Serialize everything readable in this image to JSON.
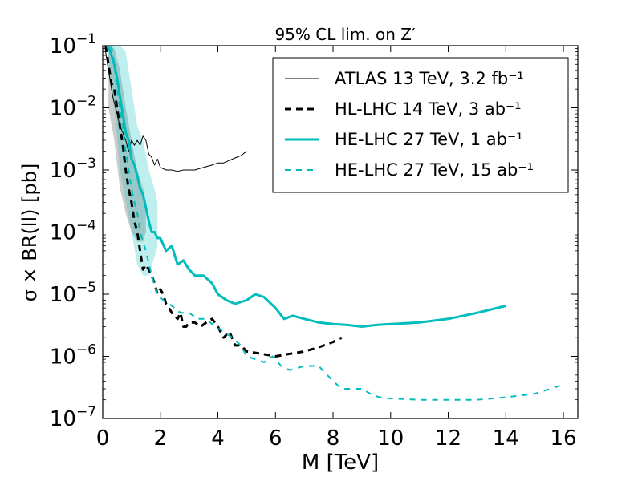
{
  "chart_data": {
    "type": "line",
    "title": "95% CL lim. on Z′",
    "xlabel": "M [TeV]",
    "ylabel": "σ × BR(ll) [pb]",
    "xlim": [
      0,
      16.5
    ],
    "ylim_log10": [
      -7,
      -1
    ],
    "xscale": "linear",
    "yscale": "log",
    "x_ticks": [
      0,
      2,
      4,
      6,
      8,
      10,
      12,
      14,
      16
    ],
    "x_tick_labels": [
      "0",
      "2",
      "4",
      "6",
      "8",
      "10",
      "12",
      "14",
      "16"
    ],
    "y_ticks_exp": [
      -7,
      -6,
      -5,
      -4,
      -3,
      -2,
      -1
    ],
    "legend_position": "top-right",
    "series": [
      {
        "name": "ATLAS 13 TeV, 3.2 fb⁻¹",
        "color": "#000000",
        "style": "solid",
        "width": 1,
        "x": [
          0.1,
          0.2,
          0.35,
          0.5,
          0.6,
          0.7,
          0.8,
          0.9,
          1.0,
          1.1,
          1.2,
          1.3,
          1.4,
          1.5,
          1.6,
          1.7,
          1.8,
          1.9,
          2.0,
          2.2,
          2.4,
          2.6,
          2.8,
          3.0,
          3.2,
          3.5,
          3.8,
          4.0,
          4.2,
          4.5,
          4.8,
          5.0
        ],
        "y": [
          0.08,
          0.04,
          0.015,
          0.008,
          0.005,
          0.004,
          0.003,
          0.002,
          0.003,
          0.0025,
          0.003,
          0.0025,
          0.0035,
          0.003,
          0.0018,
          0.0016,
          0.0012,
          0.0015,
          0.0011,
          0.001,
          0.001,
          0.00095,
          0.001,
          0.001,
          0.001,
          0.0011,
          0.0012,
          0.0013,
          0.0013,
          0.0015,
          0.0017,
          0.002
        ]
      },
      {
        "name": "HL-LHC 14 TeV, 3 ab⁻¹",
        "color": "#000000",
        "style": "dashed",
        "width": 3,
        "x": [
          0.1,
          0.2,
          0.3,
          0.4,
          0.5,
          0.6,
          0.7,
          0.8,
          0.9,
          1.0,
          1.1,
          1.2,
          1.3,
          1.4,
          1.5,
          1.6,
          1.7,
          1.8,
          1.9,
          2.0,
          2.1,
          2.2,
          2.3,
          2.4,
          2.5,
          2.6,
          2.7,
          2.8,
          2.9,
          3.0,
          3.2,
          3.4,
          3.6,
          3.8,
          4.0,
          4.2,
          4.4,
          4.6,
          4.8,
          5.0,
          5.5,
          6.0,
          6.5,
          7.0,
          7.5,
          8.0,
          8.3
        ],
        "y": [
          0.1,
          0.05,
          0.025,
          0.02,
          0.01,
          0.005,
          0.0025,
          0.001,
          0.0005,
          0.0003,
          0.00015,
          0.0001,
          5e-05,
          2.5e-05,
          3e-05,
          2.5e-05,
          2e-05,
          1.5e-05,
          1e-05,
          1.2e-05,
          1e-05,
          7e-06,
          6e-06,
          5e-06,
          4.5e-06,
          4e-06,
          5e-06,
          3e-06,
          3e-06,
          3.5e-06,
          3.5e-06,
          3e-06,
          3.5e-06,
          4e-06,
          3e-06,
          2e-06,
          2.5e-06,
          1.5e-06,
          1.5e-06,
          1.2e-06,
          1.1e-06,
          1e-06,
          1.1e-06,
          1.2e-06,
          1.4e-06,
          1.7e-06,
          2e-06
        ]
      },
      {
        "name": "HE-LHC 27 TeV, 1 ab⁻¹",
        "color": "#00bcbd",
        "style": "solid",
        "width": 3,
        "x": [
          0.2,
          0.3,
          0.4,
          0.5,
          0.6,
          0.7,
          0.8,
          0.9,
          1.0,
          1.1,
          1.2,
          1.3,
          1.4,
          1.5,
          1.6,
          1.7,
          1.8,
          1.9,
          2.0,
          2.2,
          2.4,
          2.6,
          2.8,
          3.0,
          3.2,
          3.5,
          3.8,
          4.0,
          4.3,
          4.6,
          5.0,
          5.3,
          5.6,
          6.0,
          6.3,
          6.6,
          7.0,
          7.5,
          8.0,
          8.5,
          9.0,
          9.5,
          10.0,
          11.0,
          12.0,
          13.0,
          14.0
        ],
        "y": [
          0.1,
          0.07,
          0.05,
          0.03,
          0.015,
          0.008,
          0.004,
          0.003,
          0.0015,
          0.0012,
          0.0008,
          0.0005,
          0.0004,
          0.00025,
          0.00015,
          0.0001,
          0.0001,
          8e-05,
          8e-05,
          5e-05,
          6e-05,
          3e-05,
          3.5e-05,
          2.5e-05,
          2e-05,
          2e-05,
          1.5e-05,
          1e-05,
          8e-06,
          7e-06,
          8e-06,
          1e-05,
          9e-06,
          6e-06,
          4e-06,
          4.5e-06,
          4e-06,
          3.5e-06,
          3.3e-06,
          3.2e-06,
          3e-06,
          3.2e-06,
          3.3e-06,
          3.5e-06,
          4e-06,
          5e-06,
          6.5e-06
        ]
      },
      {
        "name": "HE-LHC 27 TeV, 15 ab⁻¹",
        "color": "#00bcbd",
        "style": "dashed",
        "width": 2,
        "x": [
          0.3,
          0.4,
          0.5,
          0.6,
          0.7,
          0.8,
          0.9,
          1.0,
          1.1,
          1.2,
          1.3,
          1.4,
          1.5,
          1.7,
          1.9,
          2.1,
          2.3,
          2.5,
          2.7,
          3.0,
          3.3,
          3.6,
          3.9,
          4.2,
          4.5,
          4.8,
          5.0,
          5.3,
          5.6,
          5.9,
          6.2,
          6.5,
          7.0,
          7.5,
          8.0,
          8.3,
          8.6,
          9.0,
          9.3,
          9.6,
          10.0,
          11.0,
          12.0,
          13.0,
          14.0,
          15.0,
          16.0
        ],
        "y": [
          0.1,
          0.05,
          0.02,
          0.01,
          0.005,
          0.002,
          0.001,
          0.0005,
          0.0003,
          0.0002,
          0.0001,
          7e-05,
          5e-05,
          2e-05,
          1e-05,
          8e-06,
          7e-06,
          6e-06,
          5e-06,
          5e-06,
          4e-06,
          4e-06,
          3e-06,
          2.5e-06,
          2e-06,
          1.5e-06,
          1e-06,
          9e-07,
          8e-07,
          1e-06,
          7e-07,
          6e-07,
          7e-07,
          7e-07,
          4e-07,
          3e-07,
          3e-07,
          3e-07,
          2.5e-07,
          2.2e-07,
          2.1e-07,
          2e-07,
          2e-07,
          2e-07,
          2.2e-07,
          2.5e-07,
          3.5e-07
        ]
      }
    ],
    "bands": [
      {
        "name": "HL-LHC 14 TeV uncertainty",
        "color": "#999999",
        "opacity": 0.5,
        "x": [
          0.2,
          0.4,
          0.6,
          0.8,
          1.0,
          1.2,
          1.4,
          1.5
        ],
        "lower": [
          0.01,
          0.003,
          0.0005,
          0.0002,
          0.0001,
          7e-05,
          7e-05,
          0.0001
        ],
        "upper": [
          0.1,
          0.09,
          0.04,
          0.01,
          0.003,
          0.001,
          0.0005,
          0.0003
        ]
      },
      {
        "name": "HE-LHC 27 TeV uncertainty",
        "color": "#00bcbd",
        "opacity": 0.25,
        "x": [
          0.2,
          0.4,
          0.6,
          0.8,
          1.0,
          1.2,
          1.4,
          1.6,
          1.8,
          1.9
        ],
        "lower": [
          0.05,
          0.01,
          0.001,
          0.0003,
          0.0001,
          3e-05,
          2e-05,
          2e-05,
          4e-05,
          6e-05
        ],
        "upper": [
          0.1,
          0.1,
          0.1,
          0.08,
          0.02,
          0.005,
          0.003,
          0.001,
          0.0005,
          0.0003
        ]
      }
    ]
  }
}
